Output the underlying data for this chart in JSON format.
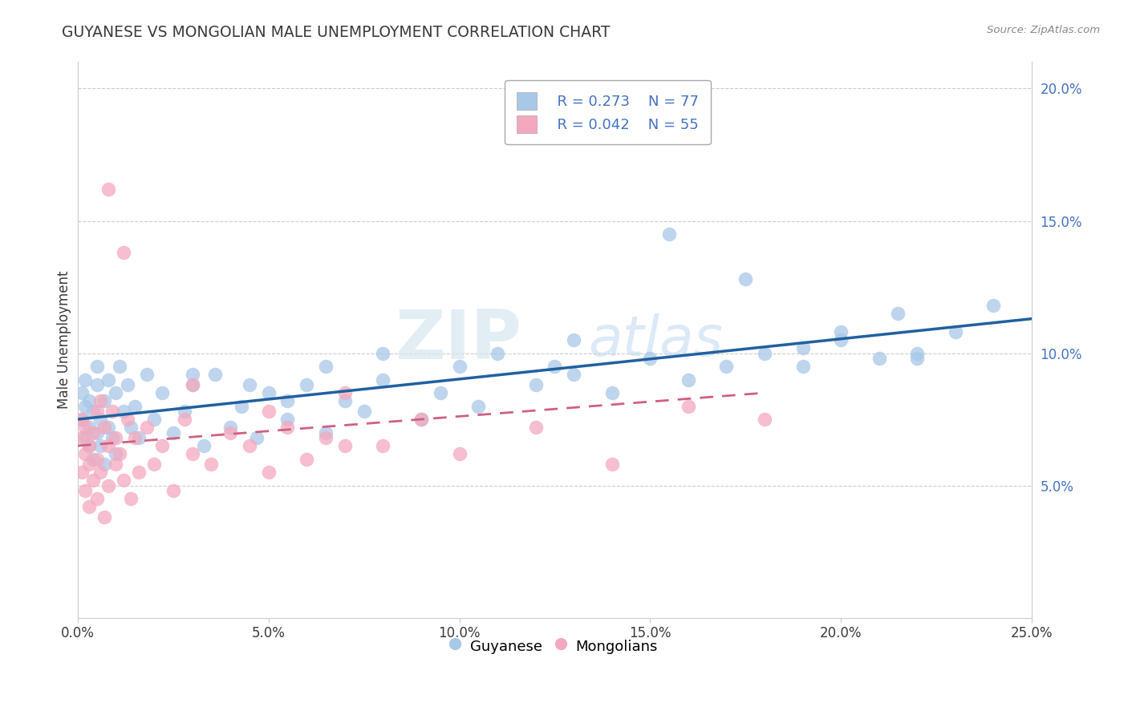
{
  "title": "GUYANESE VS MONGOLIAN MALE UNEMPLOYMENT CORRELATION CHART",
  "source_text": "Source: ZipAtlas.com",
  "ylabel": "Male Unemployment",
  "xlim": [
    0.0,
    0.25
  ],
  "ylim": [
    0.0,
    0.21
  ],
  "xticks": [
    0.0,
    0.05,
    0.1,
    0.15,
    0.2,
    0.25
  ],
  "xticklabels": [
    "0.0%",
    "5.0%",
    "10.0%",
    "15.0%",
    "20.0%",
    "25.0%"
  ],
  "yticks": [
    0.05,
    0.1,
    0.15,
    0.2
  ],
  "yticklabels": [
    "5.0%",
    "10.0%",
    "15.0%",
    "20.0%"
  ],
  "guyanese_color": "#a8c8e8",
  "mongolian_color": "#f4a8be",
  "trend_blue": "#2060a0",
  "trend_pink": "#d06080",
  "legend_R_blue": "R = 0.273",
  "legend_N_blue": "N = 77",
  "legend_R_pink": "R = 0.042",
  "legend_N_pink": "N = 55",
  "legend_label_blue": "Guyanese",
  "legend_label_pink": "Mongolians",
  "watermark_zip": "ZIP",
  "watermark_atlas": "atlas",
  "title_color": "#3a3a3a",
  "tick_color_y": "#4472c4",
  "tick_color_x": "#3a3a3a",
  "grid_color": "#cccccc",
  "source_color": "#888888",
  "guyanese_x": [
    0.001,
    0.001,
    0.002,
    0.002,
    0.002,
    0.003,
    0.003,
    0.003,
    0.004,
    0.004,
    0.005,
    0.005,
    0.005,
    0.006,
    0.006,
    0.007,
    0.007,
    0.008,
    0.008,
    0.009,
    0.01,
    0.01,
    0.011,
    0.012,
    0.013,
    0.014,
    0.015,
    0.016,
    0.018,
    0.02,
    0.022,
    0.025,
    0.028,
    0.03,
    0.033,
    0.036,
    0.04,
    0.043,
    0.047,
    0.05,
    0.055,
    0.06,
    0.065,
    0.07,
    0.075,
    0.08,
    0.09,
    0.095,
    0.1,
    0.105,
    0.11,
    0.12,
    0.125,
    0.13,
    0.14,
    0.15,
    0.16,
    0.17,
    0.18,
    0.19,
    0.2,
    0.21,
    0.22,
    0.23,
    0.03,
    0.045,
    0.055,
    0.065,
    0.08,
    0.13,
    0.155,
    0.175,
    0.19,
    0.2,
    0.215,
    0.22,
    0.24
  ],
  "guyanese_y": [
    0.085,
    0.075,
    0.09,
    0.068,
    0.08,
    0.072,
    0.065,
    0.082,
    0.078,
    0.06,
    0.088,
    0.07,
    0.095,
    0.075,
    0.065,
    0.082,
    0.058,
    0.09,
    0.072,
    0.068,
    0.085,
    0.062,
    0.095,
    0.078,
    0.088,
    0.072,
    0.08,
    0.068,
    0.092,
    0.075,
    0.085,
    0.07,
    0.078,
    0.088,
    0.065,
    0.092,
    0.072,
    0.08,
    0.068,
    0.085,
    0.075,
    0.088,
    0.07,
    0.082,
    0.078,
    0.09,
    0.075,
    0.085,
    0.095,
    0.08,
    0.1,
    0.088,
    0.095,
    0.092,
    0.085,
    0.098,
    0.09,
    0.095,
    0.1,
    0.095,
    0.105,
    0.098,
    0.1,
    0.108,
    0.092,
    0.088,
    0.082,
    0.095,
    0.1,
    0.105,
    0.145,
    0.128,
    0.102,
    0.108,
    0.115,
    0.098,
    0.118
  ],
  "mongolian_x": [
    0.001,
    0.001,
    0.001,
    0.002,
    0.002,
    0.002,
    0.003,
    0.003,
    0.003,
    0.004,
    0.004,
    0.005,
    0.005,
    0.005,
    0.006,
    0.006,
    0.007,
    0.007,
    0.008,
    0.008,
    0.009,
    0.01,
    0.01,
    0.011,
    0.012,
    0.013,
    0.014,
    0.015,
    0.016,
    0.018,
    0.02,
    0.022,
    0.025,
    0.028,
    0.03,
    0.035,
    0.04,
    0.045,
    0.05,
    0.055,
    0.06,
    0.065,
    0.07,
    0.08,
    0.09,
    0.1,
    0.12,
    0.14,
    0.16,
    0.18,
    0.03,
    0.05,
    0.07,
    0.008,
    0.012
  ],
  "mongolian_y": [
    0.068,
    0.055,
    0.075,
    0.062,
    0.048,
    0.072,
    0.058,
    0.065,
    0.042,
    0.07,
    0.052,
    0.078,
    0.06,
    0.045,
    0.082,
    0.055,
    0.072,
    0.038,
    0.065,
    0.05,
    0.078,
    0.058,
    0.068,
    0.062,
    0.052,
    0.075,
    0.045,
    0.068,
    0.055,
    0.072,
    0.058,
    0.065,
    0.048,
    0.075,
    0.062,
    0.058,
    0.07,
    0.065,
    0.055,
    0.072,
    0.06,
    0.068,
    0.085,
    0.065,
    0.075,
    0.062,
    0.072,
    0.058,
    0.08,
    0.075,
    0.088,
    0.078,
    0.065,
    0.162,
    0.138
  ],
  "blue_trend_x0": 0.0,
  "blue_trend_y0": 0.075,
  "blue_trend_x1": 0.25,
  "blue_trend_y1": 0.113,
  "pink_trend_x0": 0.0,
  "pink_trend_y0": 0.065,
  "pink_trend_x1": 0.18,
  "pink_trend_y1": 0.085
}
